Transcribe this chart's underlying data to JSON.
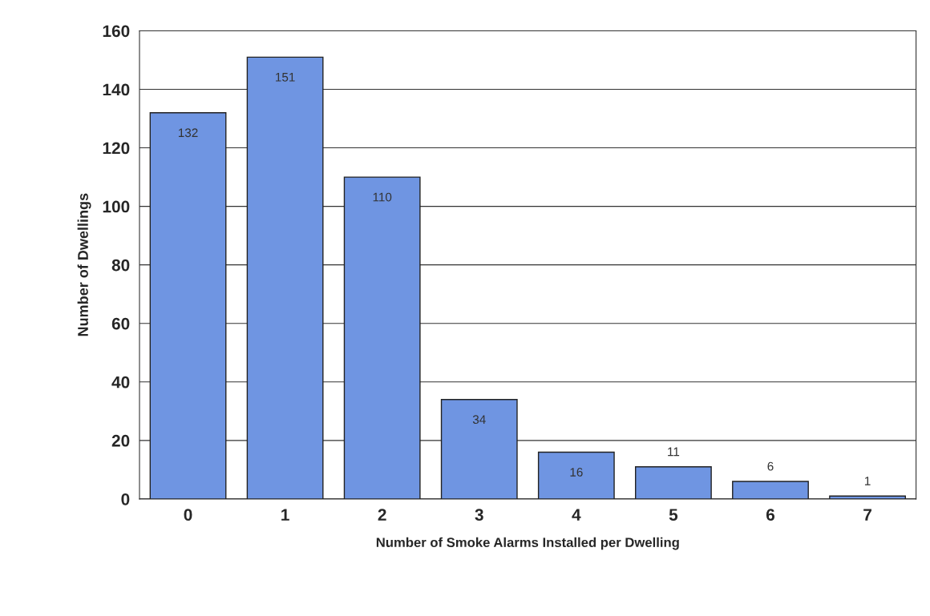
{
  "chart_data": {
    "type": "bar",
    "xlabel": "Number of Smoke Alarms Installed per Dwelling",
    "ylabel": "Number of Dwellings",
    "categories": [
      "0",
      "1",
      "2",
      "3",
      "4",
      "5",
      "6",
      "7"
    ],
    "values": [
      132,
      151,
      110,
      34,
      16,
      11,
      6,
      1
    ],
    "color": "#6f95e2",
    "ylim": [
      0,
      160
    ],
    "yticks": [
      0,
      20,
      40,
      60,
      80,
      100,
      120,
      140,
      160
    ],
    "grid": "y",
    "data_labels": true
  }
}
